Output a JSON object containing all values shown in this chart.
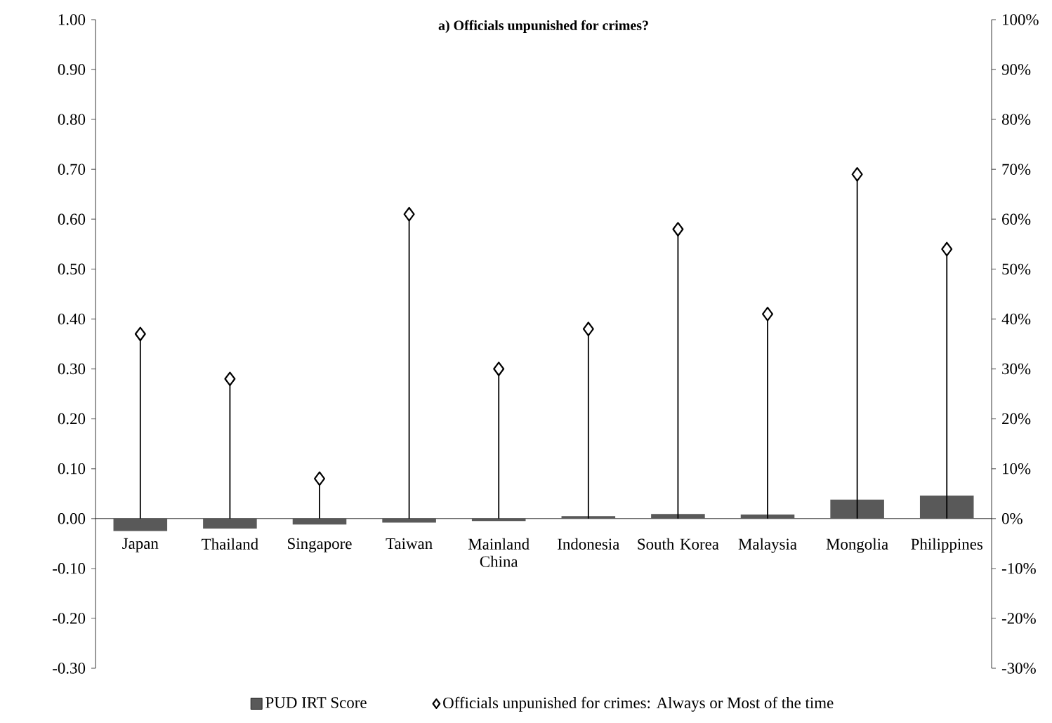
{
  "chart_data": {
    "type": "bar",
    "title": "a) Officials unpunished for crimes?",
    "categories": [
      "Japan",
      "Thailand",
      "Singapore",
      "Taiwan",
      "Mainland China",
      "Indonesia",
      "South Korea",
      "Malaysia",
      "Mongolia",
      "Philippines"
    ],
    "series": [
      {
        "name": "PUD IRT Score",
        "color": "#595959",
        "values": [
          -0.025,
          -0.02,
          -0.012,
          -0.008,
          -0.005,
          0.005,
          0.009,
          0.008,
          0.038,
          0.046
        ]
      },
      {
        "name": "Officials unpunished for crimes: Always or Most of the time",
        "type": "lollipop",
        "axis": "y2",
        "color": "#000000",
        "marker": "diamond",
        "values": [
          37,
          28,
          8,
          61,
          30,
          38,
          58,
          41,
          69,
          54
        ]
      }
    ],
    "ylim": [
      -0.3,
      1.0
    ],
    "yticks": [
      {
        "value": -0.3,
        "label": "-0.30"
      },
      {
        "value": -0.2,
        "label": "-0.20"
      },
      {
        "value": -0.1,
        "label": "-0.10"
      },
      {
        "value": 0,
        "label": "0.00"
      },
      {
        "value": 0.1,
        "label": "0.10"
      },
      {
        "value": 0.2,
        "label": "0.20"
      },
      {
        "value": 0.3,
        "label": "0.30"
      },
      {
        "value": 0.4,
        "label": "0.40"
      },
      {
        "value": 0.5,
        "label": "0.50"
      },
      {
        "value": 0.6,
        "label": "0.60"
      },
      {
        "value": 0.7,
        "label": "0.70"
      },
      {
        "value": 0.8,
        "label": "0.80"
      },
      {
        "value": 0.9,
        "label": "0.90"
      },
      {
        "value": 1.0,
        "label": "1.00"
      }
    ],
    "y2lim": [
      -30,
      100
    ],
    "y2ticks": [
      {
        "value": -30,
        "label": "-30%"
      },
      {
        "value": -20,
        "label": "-20%"
      },
      {
        "value": -10,
        "label": "-10%"
      },
      {
        "value": 0,
        "label": "0%"
      },
      {
        "value": 10,
        "label": "10%"
      },
      {
        "value": 20,
        "label": "20%"
      },
      {
        "value": 30,
        "label": "30%"
      },
      {
        "value": 40,
        "label": "40%"
      },
      {
        "value": 50,
        "label": "50%"
      },
      {
        "value": 60,
        "label": "60%"
      },
      {
        "value": 70,
        "label": "70%"
      },
      {
        "value": 80,
        "label": "80%"
      },
      {
        "value": 90,
        "label": "90%"
      },
      {
        "value": 100,
        "label": "100%"
      }
    ],
    "legend": "bottom"
  }
}
